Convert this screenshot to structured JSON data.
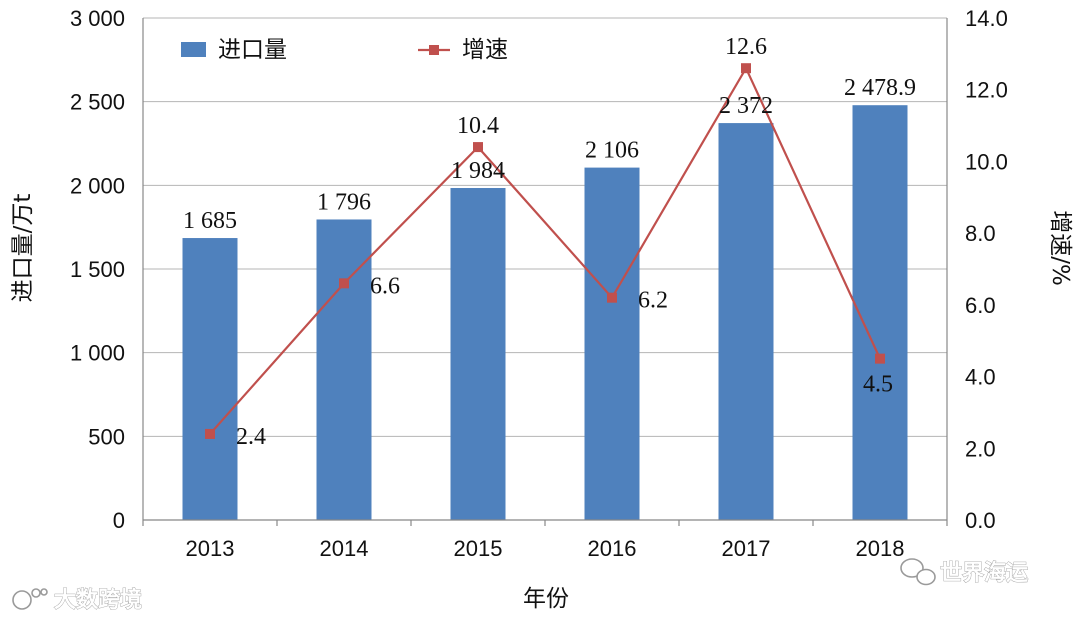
{
  "chart_data": {
    "type": "bar+line",
    "categories": [
      "2013",
      "2014",
      "2015",
      "2016",
      "2017",
      "2018"
    ],
    "series": [
      {
        "name": "进口量",
        "type": "bar",
        "axis": "left",
        "values": [
          1685,
          1796,
          1984,
          2106,
          2372,
          2478.9
        ],
        "labels": [
          "1 685",
          "1 796",
          "1 984",
          "2 106",
          "2 372",
          "2 478.9"
        ],
        "color": "#4f81bd"
      },
      {
        "name": "增速",
        "type": "line",
        "axis": "right",
        "values": [
          2.4,
          6.6,
          10.4,
          6.2,
          12.6,
          4.5
        ],
        "labels": [
          "2.4",
          "6.6",
          "10.4",
          "6.2",
          "12.6",
          "4.5"
        ],
        "color": "#c0504d"
      }
    ],
    "xlabel": "年份",
    "ylabel": "进口量/万t",
    "y2label": "增速/%",
    "ylim": [
      0,
      3000
    ],
    "y2lim": [
      0,
      14
    ],
    "yticks": [
      "0",
      "500",
      "1 000",
      "1 500",
      "2 000",
      "2 500",
      "3 000"
    ],
    "y2ticks": [
      "0.0",
      "2.0",
      "4.0",
      "6.0",
      "8.0",
      "10.0",
      "12.0",
      "14.0"
    ],
    "grid": true,
    "legend_position": "top-left"
  },
  "watermarks": {
    "left": "大数跨境",
    "right": "世界海运"
  }
}
